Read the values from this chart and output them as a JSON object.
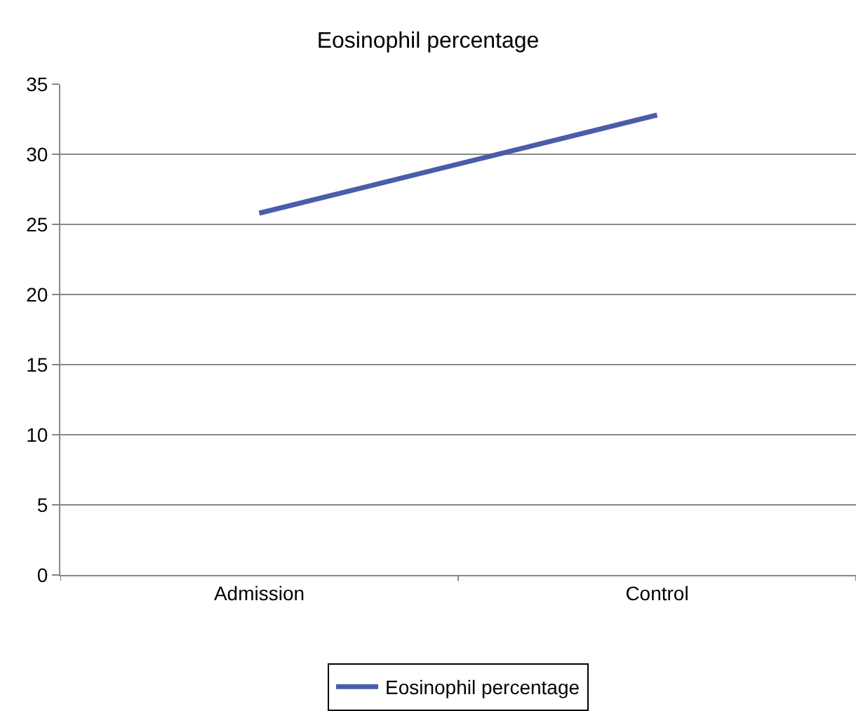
{
  "chart_data": {
    "type": "line",
    "title": "Eosinophil percentage",
    "categories": [
      "Admission",
      "Control"
    ],
    "series": [
      {
        "name": "Eosinophil percentage",
        "color": "#4a5da8",
        "values": [
          25.8,
          32.8
        ]
      }
    ],
    "ylim": [
      0,
      35
    ],
    "yticks": [
      0,
      5,
      10,
      15,
      20,
      25,
      30,
      35
    ],
    "grid": "y",
    "legend": "bottom",
    "marker": "none",
    "line_style": "solid"
  }
}
